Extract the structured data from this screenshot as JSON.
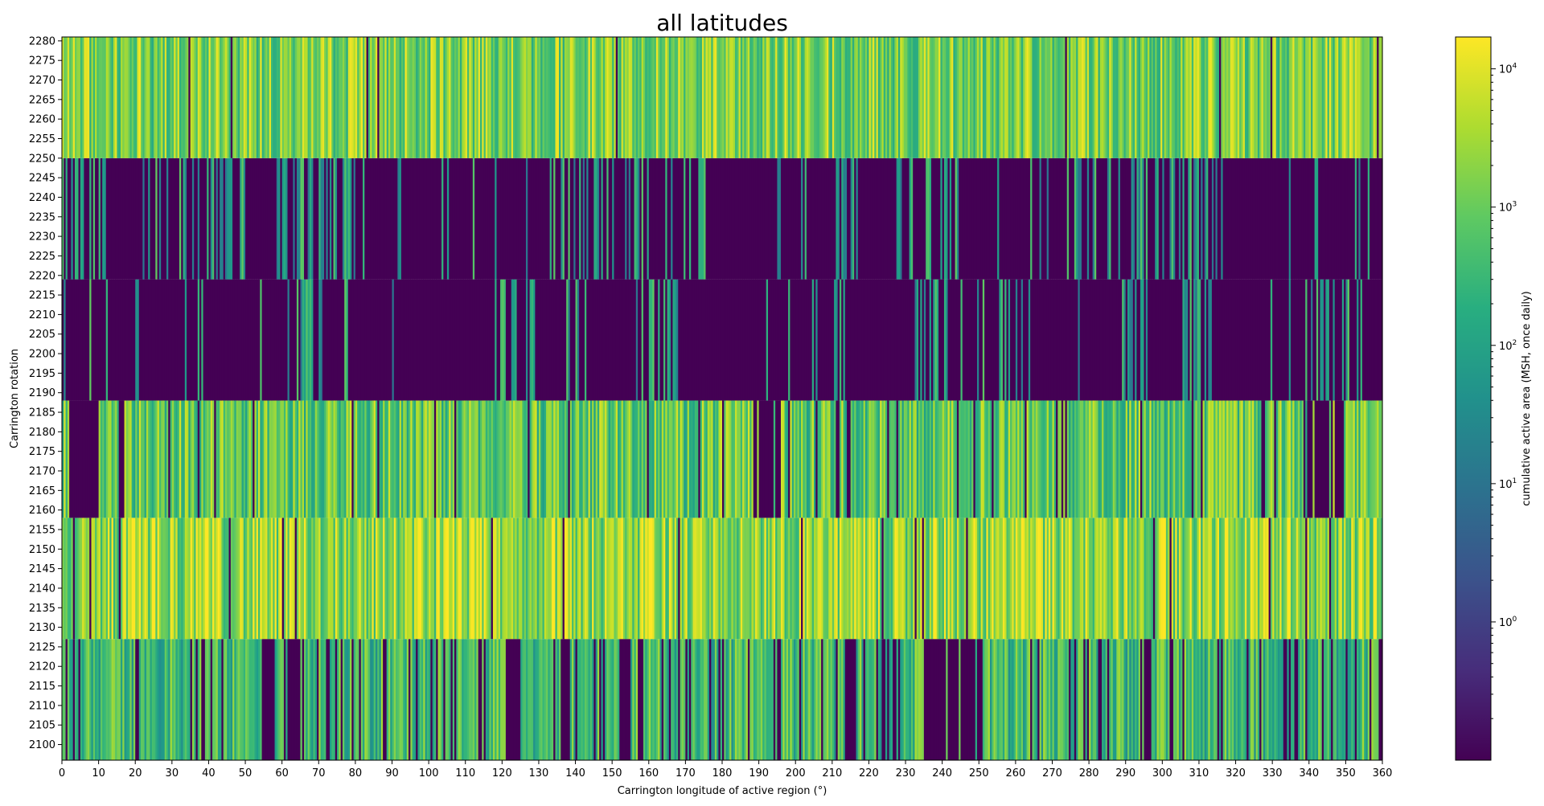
{
  "chart_data": {
    "type": "heatmap",
    "title": "all latitudes",
    "xlabel": "Carrington longitude of active region (°)",
    "ylabel": "Carrington rotation",
    "xlim": [
      0,
      360
    ],
    "ylim": [
      2096,
      2281
    ],
    "x_ticks": [
      0,
      10,
      20,
      30,
      40,
      50,
      60,
      70,
      80,
      90,
      100,
      110,
      120,
      130,
      140,
      150,
      160,
      170,
      180,
      190,
      200,
      210,
      220,
      230,
      240,
      250,
      260,
      270,
      280,
      290,
      300,
      310,
      320,
      330,
      340,
      350,
      360
    ],
    "y_ticks": [
      2100,
      2105,
      2110,
      2115,
      2120,
      2125,
      2130,
      2135,
      2140,
      2145,
      2150,
      2155,
      2160,
      2165,
      2170,
      2175,
      2180,
      2185,
      2190,
      2195,
      2200,
      2205,
      2210,
      2215,
      2220,
      2225,
      2230,
      2235,
      2240,
      2245,
      2250,
      2255,
      2260,
      2265,
      2270,
      2275,
      2280
    ],
    "colormap": "viridis",
    "color_scale": "log",
    "colorbar": {
      "label": "cumulative active area (MSH, once daily)",
      "min": 0.1,
      "max": 17000,
      "ticks": [
        {
          "value": 1,
          "base": "10",
          "exp": "0"
        },
        {
          "value": 10,
          "base": "10",
          "exp": "1"
        },
        {
          "value": 100,
          "base": "10",
          "exp": "2"
        },
        {
          "value": 1000,
          "base": "10",
          "exp": "3"
        },
        {
          "value": 10000,
          "base": "10",
          "exp": "4"
        }
      ]
    },
    "bands": [
      {
        "rotation_start": 2096,
        "rotation_end": 2127,
        "median_area": 300,
        "empty_fraction": 0.12,
        "active_fraction": 0.85
      },
      {
        "rotation_start": 2127,
        "rotation_end": 2158,
        "median_area": 1800,
        "empty_fraction": 0.01,
        "active_fraction": 0.98
      },
      {
        "rotation_start": 2158,
        "rotation_end": 2188,
        "median_area": 700,
        "empty_fraction": 0.05,
        "active_fraction": 0.95
      },
      {
        "rotation_start": 2188,
        "rotation_end": 2219,
        "median_area": 0.1,
        "empty_fraction": 0.62,
        "active_fraction": 0.35
      },
      {
        "rotation_start": 2219,
        "rotation_end": 2250,
        "median_area": 20,
        "empty_fraction": 0.55,
        "active_fraction": 0.45
      },
      {
        "rotation_start": 2250,
        "rotation_end": 2281,
        "median_area": 1200,
        "empty_fraction": 0.01,
        "active_fraction": 0.98
      }
    ]
  }
}
